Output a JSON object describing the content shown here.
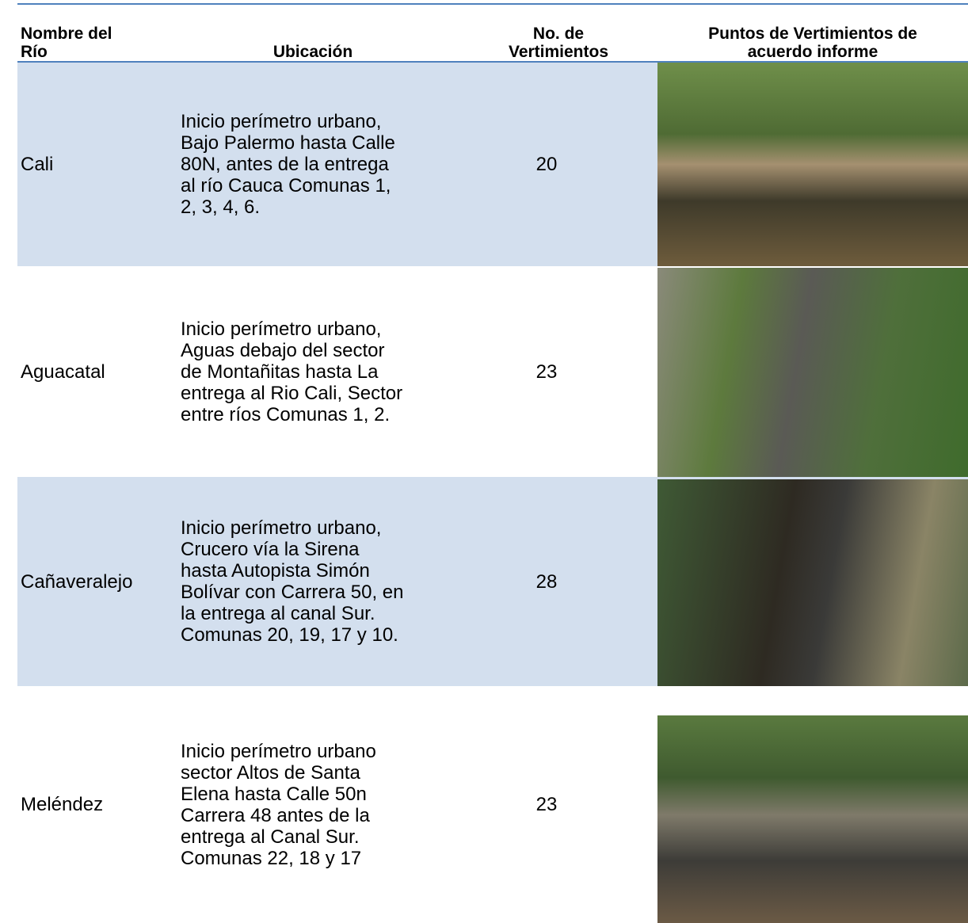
{
  "table": {
    "header": [
      [
        "Nombre del",
        "Río"
      ],
      [
        "Ubicación"
      ],
      [
        "No. de",
        "Vertimientos"
      ],
      [
        "Puntos de Vertimientos de",
        "acuerdo informe"
      ]
    ],
    "rows": [
      {
        "river": "Cali",
        "location": [
          "Inicio perímetro urbano,",
          "Bajo Palermo hasta Calle",
          "80N, antes de la entrega",
          "al río Cauca Comunas 1,",
          "2, 3, 4, 6."
        ],
        "count": 20
      },
      {
        "river": "Aguacatal",
        "location": [
          "Inicio perímetro urbano,",
          "Aguas debajo del sector",
          "de Montañitas hasta La",
          "entrega al Rio Cali, Sector",
          "entre ríos Comunas 1, 2."
        ],
        "count": 23
      },
      {
        "river": "Cañaveralejo",
        "location": [
          "Inicio perímetro urbano,",
          "Crucero vía la Sirena",
          "hasta Autopista Simón",
          "Bolívar con Carrera 50, en",
          "la entrega al canal Sur.",
          "Comunas 20, 19, 17 y 10."
        ],
        "count": 28
      },
      {
        "river": "Meléndez",
        "location": [
          "Inicio perímetro urbano",
          "sector Altos de Santa",
          "Elena hasta Calle 50n",
          "Carrera 48 antes de la",
          "entrega al Canal Sur.",
          "Comunas 22, 18 y 17"
        ],
        "count": 23
      }
    ]
  }
}
